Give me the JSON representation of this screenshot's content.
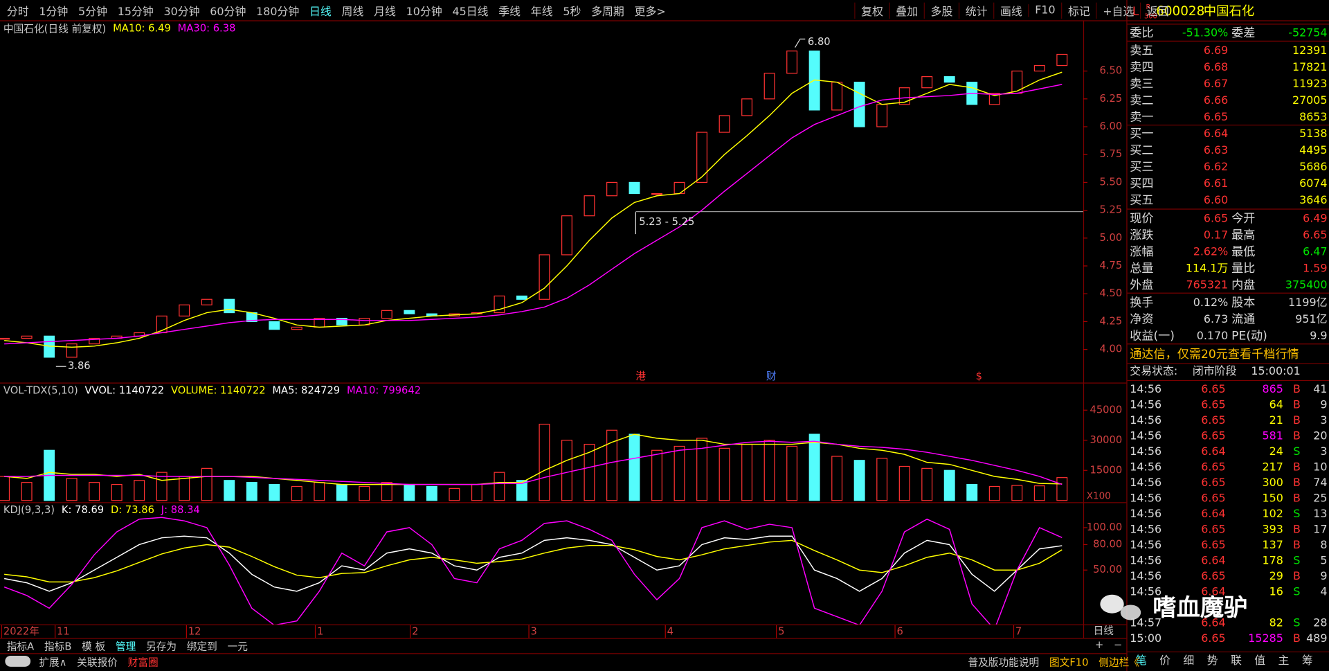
{
  "toolbar": {
    "left": [
      "分时",
      "1分钟",
      "5分钟",
      "15分钟",
      "30分钟",
      "60分钟",
      "180分钟",
      "日线",
      "周线",
      "月线",
      "10分钟",
      "45日线",
      "季线",
      "年线",
      "5秒",
      "多周期",
      "更多>"
    ],
    "right": [
      "复权",
      "叠加",
      "多股",
      "统计",
      "画线",
      "F10",
      "标记",
      "+自选",
      "返回"
    ]
  },
  "headers": {
    "price": [
      "中国石化(日线 前复权)",
      "MA10: 6.49",
      "MA30: 6.38"
    ],
    "volume": [
      "VOL-TDX(5,10)",
      "VVOL: 1140722",
      "VOLUME: 1140722",
      "MA5: 824729",
      "MA10: 799642"
    ],
    "kdj": [
      "KDJ(9,3,3)",
      "K: 78.69",
      "D: 73.86",
      "J: 88.34"
    ]
  },
  "annotations": {
    "high": "6.80",
    "low": "3.86",
    "range": "5.23 - 5.25",
    "markers": [
      "港",
      "财",
      "$"
    ],
    "unit": "X100",
    "period": "日线",
    "zoom": [
      "+",
      "−"
    ]
  },
  "dates": [
    "2022年",
    "11",
    "12",
    "1",
    "2",
    "3",
    "4",
    "5",
    "6",
    "7"
  ],
  "chart_data": [
    {
      "type": "candlestick",
      "up_color": "#ff3232",
      "down_color": "#54fcfc",
      "values": [
        4.1,
        4.12,
        3.93,
        4.05,
        4.1,
        4.12,
        4.15,
        4.3,
        4.4,
        4.45,
        4.33,
        4.25,
        4.18,
        4.2,
        4.28,
        4.22,
        4.28,
        4.35,
        4.32,
        4.3,
        4.32,
        4.33,
        4.48,
        4.45,
        4.85,
        5.2,
        5.38,
        5.5,
        5.4,
        5.4,
        5.5,
        5.95,
        6.1,
        6.25,
        6.48,
        6.68,
        6.15,
        6.4,
        6.0,
        6.2,
        6.35,
        6.45,
        6.4,
        6.2,
        6.3,
        6.5,
        6.55,
        6.65
      ],
      "series": [
        {
          "color": "#ffff00",
          "values": [
            4.08,
            4.06,
            4.03,
            4.02,
            4.03,
            4.06,
            4.1,
            4.17,
            4.26,
            4.33,
            4.36,
            4.33,
            4.28,
            4.22,
            4.2,
            4.21,
            4.22,
            4.26,
            4.28,
            4.3,
            4.31,
            4.32,
            4.36,
            4.42,
            4.55,
            4.75,
            4.98,
            5.18,
            5.32,
            5.38,
            5.4,
            5.55,
            5.75,
            5.92,
            6.1,
            6.3,
            6.42,
            6.4,
            6.3,
            6.2,
            6.22,
            6.3,
            6.38,
            6.35,
            6.28,
            6.32,
            6.42,
            6.49
          ]
        },
        {
          "color": "#ff00ff",
          "values": [
            4.05,
            4.06,
            4.07,
            4.08,
            4.09,
            4.1,
            4.12,
            4.15,
            4.18,
            4.21,
            4.24,
            4.26,
            4.27,
            4.27,
            4.27,
            4.27,
            4.26,
            4.26,
            4.26,
            4.27,
            4.28,
            4.29,
            4.31,
            4.34,
            4.38,
            4.46,
            4.58,
            4.72,
            4.86,
            4.98,
            5.1,
            5.25,
            5.42,
            5.58,
            5.74,
            5.9,
            6.02,
            6.1,
            6.18,
            6.24,
            6.26,
            6.27,
            6.28,
            6.3,
            6.29,
            6.3,
            6.34,
            6.38
          ]
        }
      ],
      "ylim": [
        3.71,
        6.94
      ],
      "yticks": [
        {
          "value": 4,
          "label": "4.00"
        },
        4.25,
        {
          "value": 4.5,
          "label": "4.50"
        },
        4.75,
        {
          "value": 5,
          "label": "5.00"
        },
        5.25,
        {
          "value": 5.5,
          "label": "5.50"
        },
        5.75,
        {
          "value": 6,
          "label": "6.00"
        },
        6.25,
        {
          "value": 6.5,
          "label": "6.50"
        }
      ]
    },
    {
      "type": "bar",
      "up_color": "#ff3232",
      "down_color": "#54fcfc",
      "values": [
        12000,
        9000,
        25000,
        11000,
        9000,
        8000,
        10000,
        14000,
        12000,
        16000,
        10000,
        9000,
        8000,
        7000,
        9000,
        8000,
        7000,
        9000,
        8000,
        7000,
        6000,
        8000,
        14000,
        10000,
        38000,
        30000,
        28000,
        35000,
        33000,
        25000,
        27000,
        31000,
        26000,
        28000,
        30000,
        27000,
        33000,
        22000,
        20000,
        21000,
        17000,
        16000,
        15000,
        8000,
        7000,
        7500,
        7300,
        11407
      ],
      "series": [
        {
          "color": "#ffff00",
          "values": [
            12000,
            11000,
            14000,
            13000,
            13000,
            12000,
            13000,
            10000,
            11000,
            12000,
            12000,
            12000,
            11000,
            10000,
            9000,
            8000,
            8000,
            8000,
            8000,
            8000,
            8000,
            8000,
            9000,
            9000,
            15000,
            20000,
            24000,
            29000,
            33000,
            31000,
            30000,
            30000,
            28000,
            28000,
            28000,
            28000,
            29000,
            28000,
            26000,
            25000,
            23000,
            19000,
            18000,
            15000,
            12000,
            10500,
            8500,
            8247
          ]
        },
        {
          "color": "#ff00ff",
          "values": [
            12000,
            12000,
            12500,
            12500,
            12500,
            12500,
            12500,
            12000,
            12000,
            12000,
            12000,
            11500,
            11000,
            10500,
            10000,
            9500,
            9000,
            8500,
            8000,
            8000,
            8000,
            8000,
            8500,
            8500,
            11500,
            14000,
            16500,
            19000,
            21000,
            23000,
            25000,
            26000,
            27500,
            29000,
            29500,
            29000,
            29500,
            28000,
            27000,
            26500,
            25500,
            24000,
            22000,
            20000,
            17500,
            15000,
            12000,
            7996
          ]
        }
      ],
      "ylim": [
        0,
        58300
      ],
      "yticks": [
        15000,
        30000,
        45000
      ]
    },
    {
      "type": "line",
      "series": [
        {
          "color": "#ffffff",
          "values": [
            40,
            35,
            25,
            35,
            50,
            65,
            80,
            88,
            90,
            88,
            70,
            45,
            30,
            25,
            35,
            55,
            50,
            70,
            75,
            70,
            55,
            50,
            65,
            70,
            85,
            88,
            85,
            80,
            65,
            50,
            55,
            80,
            88,
            86,
            90,
            90,
            50,
            40,
            25,
            40,
            70,
            85,
            80,
            45,
            25,
            50,
            75,
            78.69
          ]
        },
        {
          "color": "#ffff00",
          "values": [
            45,
            42,
            36,
            36,
            41,
            49,
            59,
            69,
            76,
            80,
            77,
            66,
            54,
            44,
            41,
            46,
            47,
            55,
            62,
            65,
            62,
            58,
            60,
            63,
            70,
            76,
            79,
            79,
            74,
            66,
            62,
            68,
            75,
            79,
            83,
            85,
            73,
            62,
            50,
            47,
            55,
            65,
            70,
            62,
            50,
            50,
            58,
            73.86
          ]
        },
        {
          "color": "#ff00ff",
          "values": [
            30,
            20,
            5,
            33,
            68,
            95,
            110,
            112,
            108,
            100,
            56,
            5,
            -15,
            -10,
            25,
            70,
            55,
            95,
            100,
            80,
            40,
            35,
            75,
            85,
            105,
            108,
            98,
            85,
            45,
            15,
            40,
            100,
            108,
            98,
            104,
            100,
            5,
            -5,
            -15,
            25,
            95,
            110,
            98,
            10,
            -20,
            50,
            100,
            88.34
          ]
        }
      ],
      "ylim": [
        -14,
        128
      ],
      "yticks": [
        {
          "value": 50,
          "label": "50.00"
        },
        {
          "value": 80,
          "label": "80.00"
        },
        {
          "value": 100,
          "label": "100.00"
        }
      ]
    }
  ],
  "quote": {
    "flags": [
      "L",
      "R",
      "300"
    ],
    "code": "600028",
    "name": "中国石化",
    "ratio": [
      "委比",
      "-51.30%",
      "委差",
      "-52754"
    ],
    "asks": [
      [
        "卖五",
        "6.69",
        "12391"
      ],
      [
        "卖四",
        "6.68",
        "17821"
      ],
      [
        "卖三",
        "6.67",
        "11923"
      ],
      [
        "卖二",
        "6.66",
        "27005"
      ],
      [
        "卖一",
        "6.65",
        "8653"
      ]
    ],
    "bids": [
      [
        "买一",
        "6.64",
        "5138"
      ],
      [
        "买二",
        "6.63",
        "4495"
      ],
      [
        "买三",
        "6.62",
        "5686"
      ],
      [
        "买四",
        "6.61",
        "6074"
      ],
      [
        "买五",
        "6.60",
        "3646"
      ]
    ],
    "stats": [
      [
        "现价",
        "6.65",
        "今开",
        "6.49"
      ],
      [
        "涨跌",
        "0.17",
        "最高",
        "6.65"
      ],
      [
        "涨幅",
        "2.62%",
        "最低",
        "6.47"
      ],
      [
        "总量",
        "114.1万",
        "量比",
        "1.59"
      ],
      [
        "外盘",
        "765321",
        "内盘",
        "375400"
      ]
    ],
    "stats2": [
      [
        "换手",
        "0.12%",
        "股本",
        "1199亿"
      ],
      [
        "净资",
        "6.73",
        "流通",
        "951亿"
      ],
      [
        "收益(一)",
        "0.170",
        "PE(动)",
        "9.9"
      ]
    ],
    "promo": "通达信，仅需20元查看千档行情",
    "status": [
      "交易状态:",
      "闭市阶段",
      "15:00:01"
    ],
    "ticks": [
      [
        "14:56",
        "6.65",
        "865",
        "B",
        "41"
      ],
      [
        "14:56",
        "6.65",
        "64",
        "B",
        "9"
      ],
      [
        "14:56",
        "6.65",
        "21",
        "B",
        "3"
      ],
      [
        "14:56",
        "6.65",
        "581",
        "B",
        "20"
      ],
      [
        "14:56",
        "6.64",
        "24",
        "S",
        "3"
      ],
      [
        "14:56",
        "6.65",
        "217",
        "B",
        "10"
      ],
      [
        "14:56",
        "6.65",
        "300",
        "B",
        "74"
      ],
      [
        "14:56",
        "6.65",
        "150",
        "B",
        "25"
      ],
      [
        "14:56",
        "6.64",
        "102",
        "S",
        "13"
      ],
      [
        "14:56",
        "6.65",
        "393",
        "B",
        "17"
      ],
      [
        "14:56",
        "6.65",
        "137",
        "B",
        "8"
      ],
      [
        "14:56",
        "6.64",
        "178",
        "S",
        "5"
      ],
      [
        "14:56",
        "6.65",
        "29",
        "B",
        "9"
      ],
      [
        "14:56",
        "6.64",
        "16",
        "S",
        "4"
      ],
      [
        "14:57",
        "6.64",
        "82",
        "S",
        "28"
      ],
      [
        "15:00",
        "6.65",
        "15285",
        "B",
        "489"
      ]
    ]
  },
  "bottom": {
    "row1": [
      "指标A",
      "指标B",
      "模 板",
      "管理",
      "另存为",
      "绑定到",
      "一元"
    ],
    "row2": [
      "扩展∧",
      "关联报价",
      "财富圈"
    ],
    "right": [
      "普及版功能说明",
      "图文F10",
      "侧边栏《"
    ],
    "tabs": [
      "笔",
      "价",
      "细",
      "势",
      "联",
      "值",
      "主",
      "筹"
    ]
  },
  "watermark": "嗜血魔驴"
}
